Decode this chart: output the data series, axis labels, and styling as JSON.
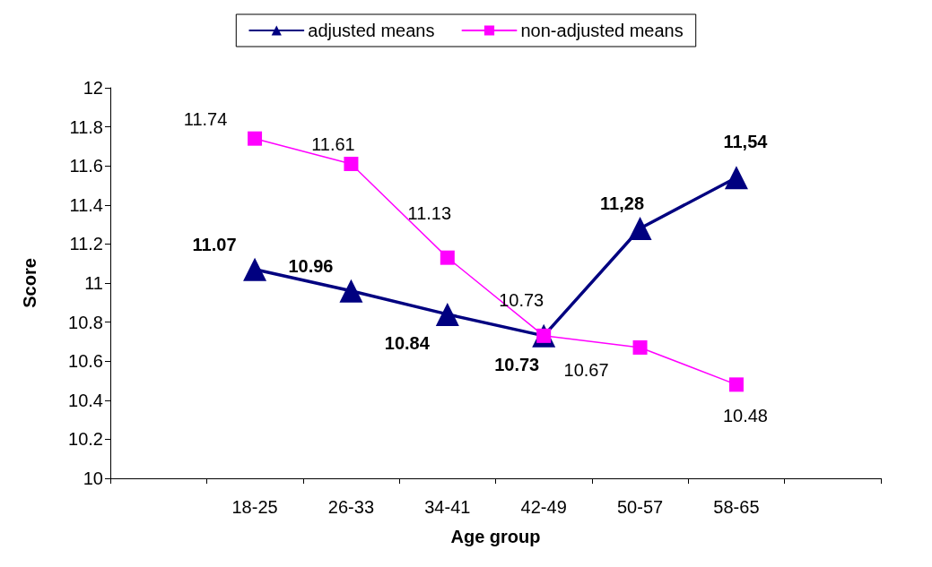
{
  "chart_data": {
    "type": "line",
    "xlabel": "Age group",
    "ylabel": "Score",
    "categories": [
      null,
      "18-25",
      "26-33",
      "34-41",
      "42-49",
      "50-57",
      "58-65",
      null
    ],
    "ylim": [
      10,
      12
    ],
    "yticks": [
      10,
      10.2,
      10.4,
      10.6,
      10.8,
      11,
      11.2,
      11.4,
      11.6,
      11.8,
      12
    ],
    "grid": false,
    "legend": "top",
    "series": [
      {
        "name": "adjusted means",
        "color": "#000080",
        "marker": "triangle",
        "values": [
          null,
          11.07,
          10.96,
          10.84,
          10.73,
          11.28,
          11.54,
          null
        ],
        "value_labels": [
          null,
          "11.07",
          "10.96",
          "10.84",
          "10.73",
          "11,28",
          "11,54",
          null
        ]
      },
      {
        "name": "non-adjusted means",
        "color": "#ff00ff",
        "marker": "square",
        "values": [
          null,
          11.74,
          11.61,
          11.13,
          10.73,
          10.67,
          10.48,
          null
        ],
        "value_labels": [
          null,
          "11.74",
          "11.61",
          "11.13",
          "10.73",
          "10.67",
          "10.48",
          null
        ]
      }
    ]
  }
}
